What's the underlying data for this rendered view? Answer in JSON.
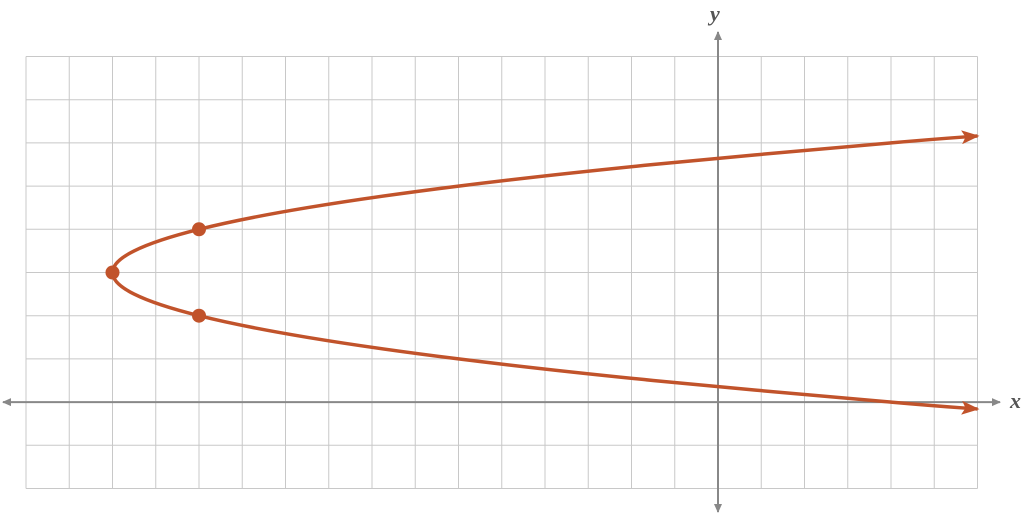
{
  "chart_data": {
    "type": "parabola",
    "x_label": "x",
    "y_label": "y",
    "xlim": [
      -16,
      6
    ],
    "ylim": [
      -2,
      8
    ],
    "xticks": [
      -16,
      -15,
      -14,
      -13,
      -12,
      -11,
      -10,
      -9,
      -8,
      -7,
      -6,
      -5,
      -4,
      -3,
      -2,
      -1,
      0,
      1,
      2,
      3,
      4,
      5,
      6
    ],
    "yticks": [
      -2,
      -1,
      0,
      1,
      2,
      3,
      4,
      5,
      6,
      7,
      8
    ],
    "grid": true,
    "color": "#c1532b",
    "curve": {
      "x": [
        6,
        4,
        -1.5,
        -6,
        -9.5,
        -12,
        -13.5,
        -14,
        -13.5,
        -12,
        -9.5,
        -6,
        -1.5,
        4,
        6
      ],
      "y": [
        -0.16,
        0,
        0.5,
        1,
        1.5,
        2,
        2.5,
        3,
        3.5,
        4,
        4.5,
        5,
        5.5,
        6,
        6.16
      ]
    },
    "points": {
      "x": [
        -14,
        -12,
        -12
      ],
      "y": [
        3,
        4,
        2
      ]
    }
  }
}
